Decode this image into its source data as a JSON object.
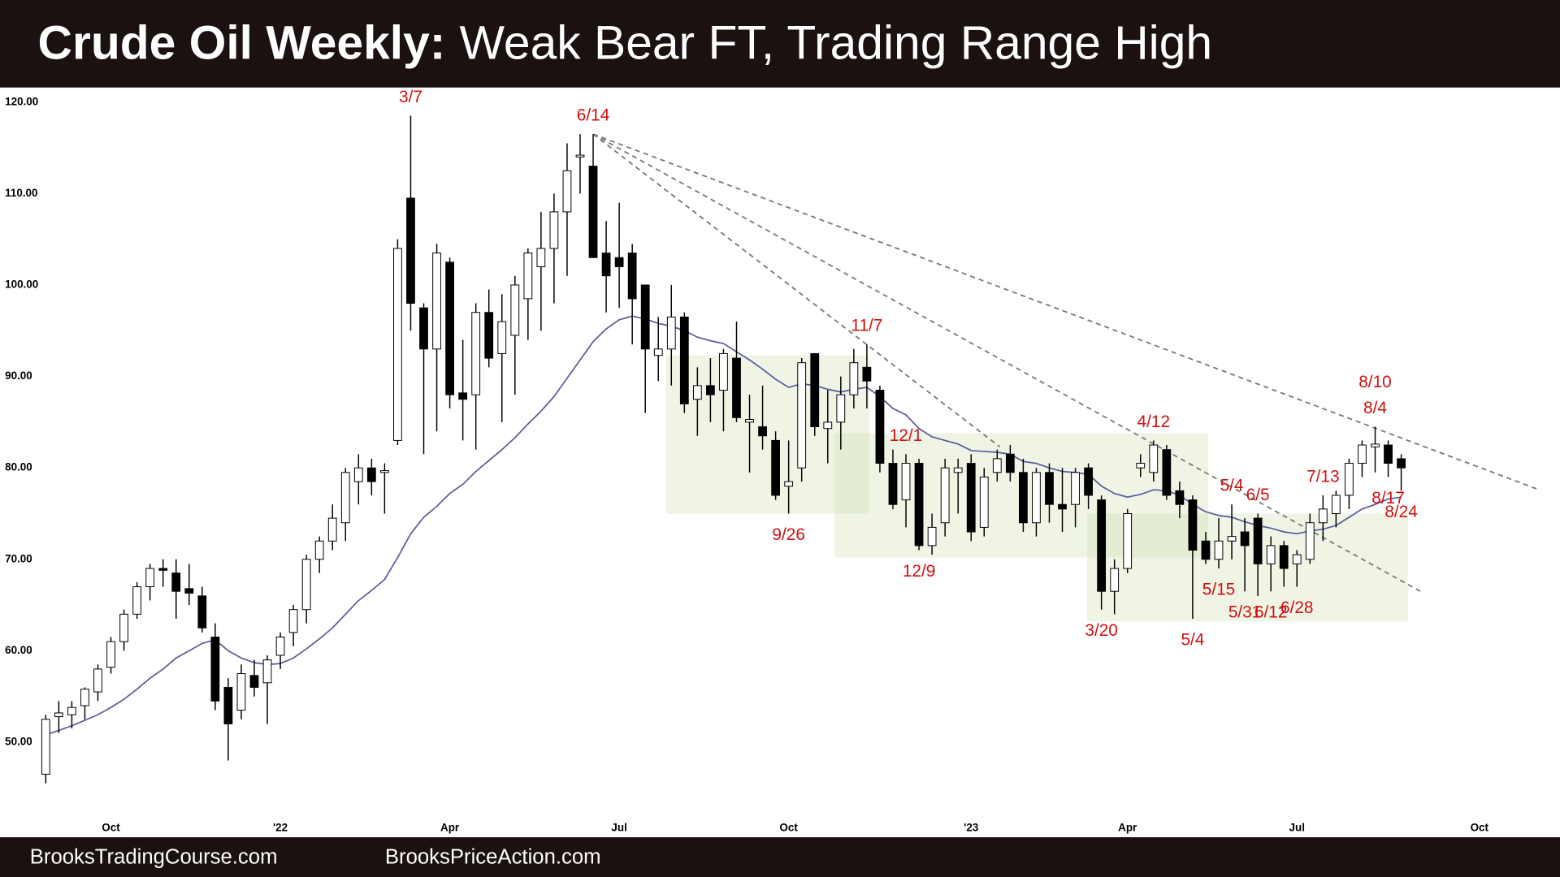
{
  "header": {
    "lead": "Crude Oil Weekly:",
    "text": "Weak Bear FT, Trading Range High"
  },
  "footer": {
    "left": "BrooksTradingCourse.com",
    "right": "BrooksPriceAction.com"
  },
  "chart_data": {
    "type": "candlestick",
    "categories": [
      null,
      null,
      null,
      null,
      null,
      "Oct",
      null,
      null,
      null,
      null,
      null,
      null,
      null,
      null,
      null,
      null,
      null,
      null,
      "'22",
      null,
      null,
      null,
      null,
      null,
      null,
      null,
      null,
      null,
      null,
      null,
      null,
      "Apr",
      null,
      null,
      null,
      null,
      null,
      null,
      null,
      null,
      null,
      null,
      null,
      null,
      "Jul",
      null,
      null,
      null,
      null,
      null,
      null,
      null,
      null,
      null,
      null,
      null,
      null,
      "Oct",
      null,
      null,
      null,
      null,
      null,
      null,
      null,
      null,
      null,
      null,
      null,
      null,
      null,
      "'23",
      null,
      null,
      null,
      null,
      null,
      null,
      null,
      null,
      null,
      null,
      null,
      "Apr",
      null,
      null,
      null,
      null,
      null,
      null,
      null,
      null,
      null,
      null,
      null,
      null,
      "Jul",
      null,
      null,
      null,
      null,
      null,
      null,
      null,
      null,
      null,
      null,
      null,
      null,
      null,
      "Oct",
      null,
      null,
      null,
      null,
      null
    ],
    "open": [
      46.5,
      52.8,
      53,
      54,
      55.5,
      58.2,
      61,
      64,
      67,
      69,
      68.5,
      66.8,
      66,
      61.5,
      56,
      53.5,
      57.3,
      56.5,
      59.5,
      62,
      64.5,
      70,
      72,
      74,
      78.5,
      80,
      79.5,
      83,
      109.5,
      97.5,
      93,
      102.5,
      88.2,
      88,
      97,
      92.5,
      94.5,
      98.5,
      102,
      104,
      108,
      114,
      113,
      103.5,
      103,
      103.5,
      100,
      92.3,
      93,
      96.5,
      87.5,
      89,
      88.5,
      92,
      85,
      84.5,
      83,
      78,
      80,
      92.5,
      84.3,
      85,
      88,
      91,
      88.5,
      80.5,
      76.5,
      80.5,
      71.5,
      74,
      79.5,
      80.5,
      73.5,
      79.5,
      81.5,
      79.5,
      74,
      79.5,
      76,
      76,
      80,
      76.5,
      66.5,
      69,
      80,
      79.5,
      82,
      77.5,
      76.5,
      72,
      70,
      72,
      73,
      74.5,
      69.5,
      71.5,
      69.5,
      70,
      74,
      75,
      77,
      80.5,
      82.3,
      82.5,
      81,
      null,
      null,
      null,
      null,
      null,
      null,
      null,
      null,
      null,
      null,
      null
    ],
    "high": [
      53,
      54.5,
      54.5,
      56,
      58.5,
      61.5,
      64.5,
      67.5,
      69.5,
      70,
      70,
      69.5,
      67,
      63,
      57,
      58.5,
      59,
      59.5,
      62,
      65,
      70.5,
      72.5,
      76,
      80,
      81.5,
      81,
      80.5,
      105,
      118.5,
      98,
      104.5,
      103,
      94,
      98,
      99.5,
      99,
      101,
      104,
      108,
      110,
      115.5,
      116.5,
      116.5,
      107,
      109,
      104.5,
      100,
      96.5,
      100,
      97,
      91,
      92,
      93,
      96,
      88,
      89,
      84,
      83,
      92,
      92.5,
      88.5,
      90,
      93,
      93.5,
      89,
      82,
      81.5,
      81,
      75,
      81,
      81,
      81.5,
      80,
      82,
      82.5,
      81,
      80,
      80.5,
      80,
      80,
      80.5,
      77,
      70,
      75.5,
      81.5,
      83,
      82.5,
      78.5,
      77,
      73,
      74.5,
      76,
      74.5,
      75,
      72.5,
      72,
      71,
      75,
      77,
      77.5,
      81,
      83,
      84.5,
      83,
      81.5,
      null,
      null,
      null,
      null,
      null,
      null,
      null,
      null,
      null,
      null,
      null
    ],
    "low": [
      45.5,
      51,
      51.5,
      52.5,
      54.5,
      57.5,
      60,
      63.5,
      65.5,
      67,
      63.5,
      65,
      62,
      53.5,
      48,
      52.5,
      55,
      52,
      58,
      60.5,
      63,
      68.5,
      71,
      72,
      76,
      77,
      75,
      82.5,
      95,
      81.5,
      84,
      86.5,
      83,
      82,
      91,
      85,
      88,
      94,
      95,
      98,
      101,
      110,
      103,
      97,
      97.5,
      93.5,
      86,
      89.5,
      89,
      86,
      83.5,
      85,
      84,
      85,
      79.5,
      82,
      76.5,
      75,
      78.5,
      83.5,
      80.5,
      82,
      86.5,
      86.5,
      79.5,
      75.5,
      73.5,
      71,
      70.5,
      72.5,
      75,
      72,
      72.5,
      78.5,
      78.5,
      73,
      72.5,
      74,
      73,
      73.5,
      75.5,
      64.5,
      64,
      68.5,
      79,
      78.5,
      76.5,
      74.5,
      63.5,
      69.5,
      69,
      70,
      66.5,
      66,
      66.5,
      67,
      67,
      69.5,
      72,
      73.5,
      75.5,
      79,
      79.5,
      79,
      77.5,
      null,
      null,
      null,
      null,
      null,
      null,
      null,
      null,
      null,
      null,
      null
    ],
    "close": [
      52.5,
      53.2,
      53.8,
      55.8,
      58,
      61,
      64,
      67,
      69,
      68.8,
      66.5,
      66.3,
      62.5,
      54.5,
      52,
      57.5,
      56,
      59,
      61.5,
      64.5,
      70,
      72,
      74.5,
      79.5,
      80,
      78.5,
      79.7,
      104,
      98,
      93,
      103.5,
      88,
      87.5,
      97,
      92,
      96,
      100,
      103.5,
      104,
      108,
      112.5,
      114.2,
      103,
      101,
      102,
      98.5,
      93,
      93,
      96.5,
      87,
      89,
      88,
      92.5,
      85.5,
      85.3,
      83.5,
      77,
      78.5,
      91.5,
      84.5,
      85,
      88,
      91.5,
      89.5,
      80.5,
      76,
      80.5,
      71.5,
      73.5,
      80,
      80,
      73,
      79,
      81,
      79.5,
      74,
      79.5,
      76,
      75.5,
      79.5,
      77,
      66.5,
      69,
      75,
      80.5,
      82.5,
      77,
      76,
      71,
      70,
      72,
      72.5,
      71.5,
      69.5,
      71.5,
      69,
      70.5,
      74,
      75.5,
      77,
      80.5,
      82.5,
      82.6,
      80.5,
      80,
      null,
      null,
      null,
      null,
      null,
      null,
      null,
      null,
      null,
      null,
      null
    ],
    "up_color": "#ffffff",
    "down_color": "#000000",
    "wick_color": "#000000",
    "ema": {
      "color": "#5a5aa0",
      "values": [
        50.8,
        51.3,
        51.8,
        52.4,
        53,
        53.8,
        54.7,
        55.8,
        57,
        58,
        59.2,
        60,
        60.8,
        61.2,
        60,
        59.2,
        58.7,
        58.5,
        58.6,
        59.2,
        60.2,
        61.3,
        62.5,
        64,
        65.5,
        66.6,
        67.8,
        70.2,
        72.8,
        74.6,
        75.8,
        77.2,
        78.2,
        79.6,
        80.8,
        82,
        83.3,
        84.8,
        86.2,
        87.8,
        89.8,
        91.8,
        93.8,
        95.2,
        96.2,
        96.6,
        96.3,
        95.8,
        95.5,
        95,
        94.3,
        93.9,
        93.6,
        92.7,
        91.8,
        90.8,
        89.7,
        88.8,
        89.2,
        89,
        88.6,
        88.3,
        88.6,
        88.8,
        87.8,
        86.5,
        85.8,
        84.3,
        83.4,
        83,
        82.6,
        81.9,
        81.8,
        81.7,
        81.5,
        80.7,
        80.5,
        80,
        79.6,
        79.5,
        79.3,
        78,
        77.2,
        76.8,
        77.1,
        77.6,
        77.5,
        77,
        76,
        75.2,
        74.8,
        74.6,
        74.1,
        73.7,
        73.4,
        73,
        72.8,
        73.1,
        73.3,
        73.7,
        74.6,
        75.5,
        76,
        76.6,
        76.8,
        null,
        null,
        null,
        null,
        null,
        null,
        null,
        null,
        null,
        null,
        null
      ]
    },
    "trendlines": [
      {
        "x": [
          42,
          73.2
        ],
        "y": [
          116.5,
          82.3
        ]
      },
      {
        "x": [
          42,
          105.6
        ],
        "y": [
          116.5,
          66.4
        ]
      },
      {
        "x": [
          42,
          114.4
        ],
        "y": [
          116.5,
          77.7
        ]
      }
    ],
    "ranges": [
      {
        "x": [
          47.6,
          63.2
        ],
        "y": [
          75,
          92.3
        ]
      },
      {
        "x": [
          60.5,
          89.2
        ],
        "y": [
          70.2,
          83.8
        ]
      },
      {
        "x": [
          79.9,
          104.5
        ],
        "y": [
          63.2,
          75
        ]
      }
    ],
    "annotations": [
      {
        "text": "3/7",
        "candle": 28,
        "side": "above"
      },
      {
        "text": "6/14",
        "candle": 42,
        "side": "above"
      },
      {
        "text": "11/7",
        "candle": 63,
        "side": "above"
      },
      {
        "text": "12/1",
        "candle": 66,
        "side": "above"
      },
      {
        "text": "9/26",
        "candle": 57,
        "side": "below"
      },
      {
        "text": "12/9",
        "candle": 67,
        "side": "below"
      },
      {
        "text": "3/20",
        "candle": 81,
        "side": "below"
      },
      {
        "text": "4/12",
        "candle": 85,
        "side": "above"
      },
      {
        "text": "5/4",
        "candle": 88,
        "side": "below"
      },
      {
        "text": "5/4",
        "candle": 91,
        "side": "above"
      },
      {
        "text": "5/15",
        "candle": 90,
        "side": "below"
      },
      {
        "text": "5/31",
        "candle": 92,
        "side": "below"
      },
      {
        "text": "6/5",
        "candle": 93,
        "side": "above"
      },
      {
        "text": "6/12",
        "candle": 94,
        "side": "below"
      },
      {
        "text": "6/28",
        "candle": 96,
        "side": "below"
      },
      {
        "text": "7/13",
        "candle": 98,
        "side": "above"
      },
      {
        "text": "8/4",
        "candle": 102,
        "side": "above"
      },
      {
        "text": "8/10",
        "candle": 102,
        "side": "above"
      },
      {
        "text": "8/17",
        "candle": 103,
        "side": "below"
      },
      {
        "text": "8/24",
        "candle": 104,
        "side": "below"
      }
    ],
    "annotation_color": "#d01010",
    "ylim": [
      42,
      121.6
    ],
    "yticks": [
      {
        "value": 50,
        "label": "50.00"
      },
      {
        "value": 60,
        "label": "60.00"
      },
      {
        "value": 70,
        "label": "70.00"
      },
      {
        "value": 80,
        "label": "80.00"
      },
      {
        "value": 90,
        "label": "90.00"
      },
      {
        "value": 100,
        "label": "100.00"
      },
      {
        "value": 110,
        "label": "110.00"
      },
      {
        "value": 120,
        "label": "120.00"
      }
    ]
  }
}
